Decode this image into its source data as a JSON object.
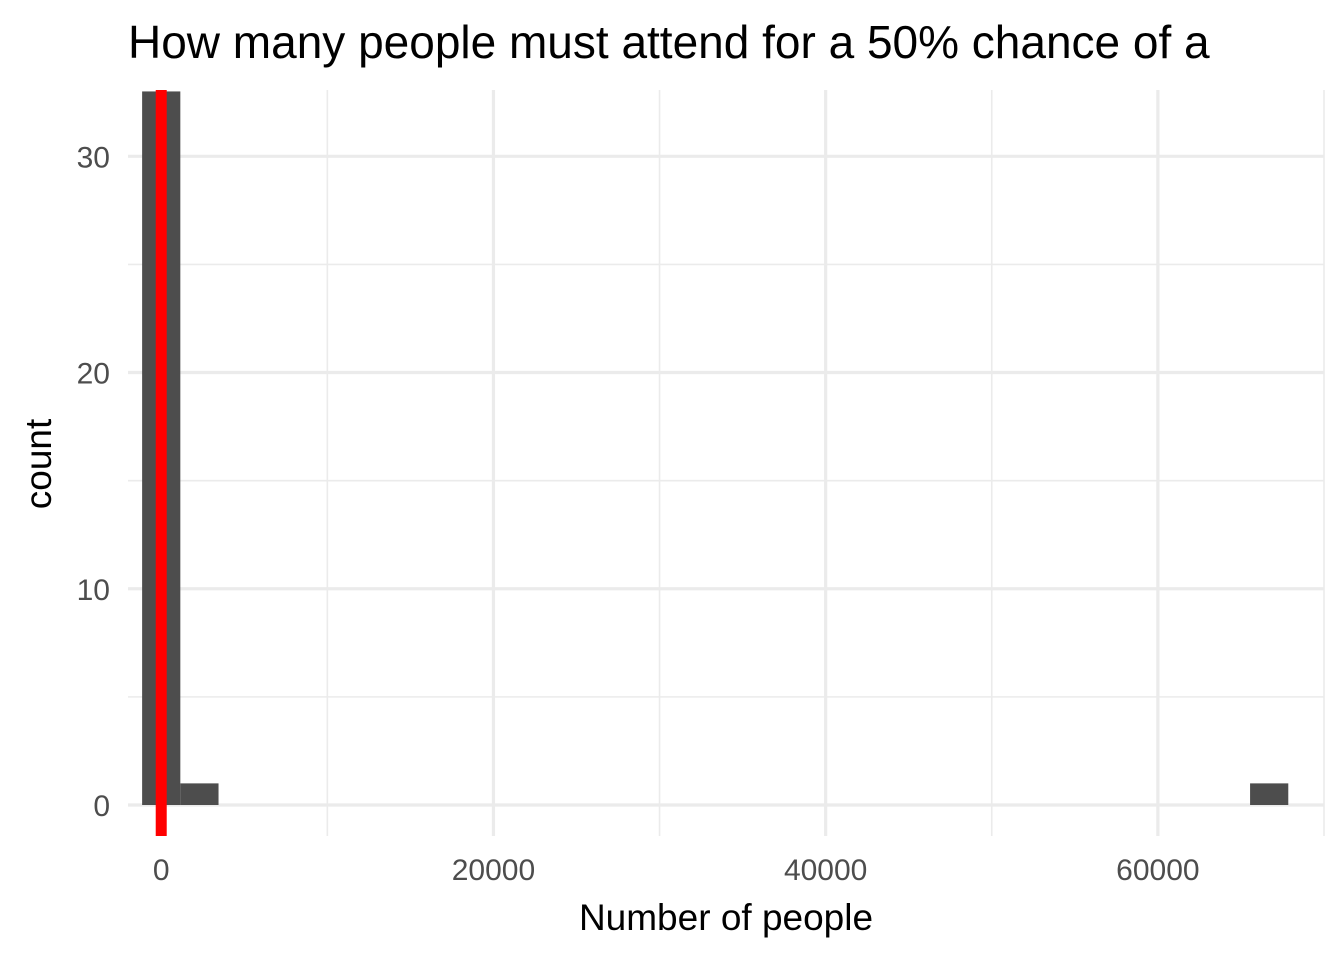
{
  "chart_data": {
    "type": "bar",
    "title": "How many people must attend for a 50% chance of a",
    "xlabel": "Number of people",
    "ylabel": "count",
    "xlim": [
      -2000,
      70000
    ],
    "ylim": [
      0,
      34.5
    ],
    "x_ticks": [
      0,
      20000,
      40000,
      60000
    ],
    "x_tick_labels": [
      "0",
      "20000",
      "40000",
      "60000"
    ],
    "y_ticks": [
      0,
      10,
      20,
      30
    ],
    "y_tick_labels": [
      "0",
      "10",
      "20",
      "30"
    ],
    "grid": true,
    "bin_width": 2300,
    "bins": [
      {
        "x0": -1150,
        "x1": 1150,
        "count": 33
      },
      {
        "x0": 1150,
        "x1": 3450,
        "count": 1
      },
      {
        "x0": 65550,
        "x1": 67850,
        "count": 1
      }
    ],
    "reference_line": {
      "x": 0,
      "color": "#ff0000"
    },
    "bar_color": "#4d4d4d"
  }
}
